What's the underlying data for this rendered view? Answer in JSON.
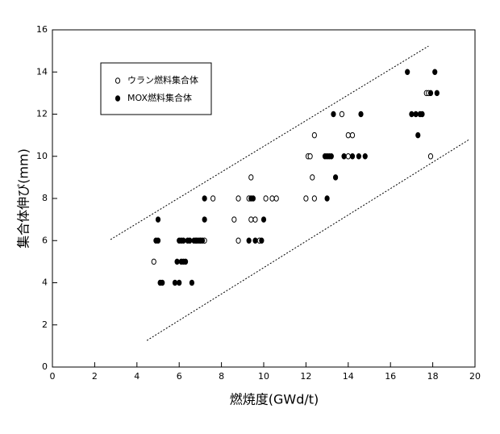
{
  "chart_data": {
    "type": "scatter",
    "x_label": "燃焼度(GWd/t)",
    "y_label": "集合体伸び(mm)",
    "xlim": [
      0,
      20
    ],
    "xticks": [
      0,
      2,
      4,
      6,
      8,
      10,
      12,
      14,
      16,
      18,
      20
    ],
    "ylim": [
      0,
      16
    ],
    "yticks": [
      0,
      2,
      4,
      6,
      8,
      10,
      12,
      14,
      16
    ],
    "legend": "upper left",
    "series": [
      {
        "name": "ウラン燃料集合体",
        "color": "#000000",
        "marker": "open",
        "x": [
          4.8,
          6.8,
          7.0,
          7.2,
          8.8,
          9.8,
          8.6,
          9.4,
          9.6,
          7.6,
          8.8,
          9.3,
          10.1,
          10.4,
          10.6,
          12.0,
          12.4,
          9.4,
          12.3,
          12.1,
          12.2,
          14.0,
          12.4,
          14.0,
          14.2,
          13.7,
          17.7,
          17.8,
          17.9
        ],
        "y": [
          5,
          6,
          6,
          6,
          6,
          6,
          7,
          7,
          7,
          8,
          8,
          8,
          8,
          8,
          8,
          8,
          8,
          9,
          9,
          10,
          10,
          10,
          11,
          11,
          11,
          12,
          13,
          13,
          10
        ]
      },
      {
        "name": "MOX燃料集合体",
        "color": "#000000",
        "marker": "filled",
        "x": [
          5.1,
          5.2,
          5.8,
          6.0,
          6.6,
          5.9,
          6.1,
          6.2,
          6.3,
          4.9,
          5.0,
          6.0,
          6.1,
          6.2,
          6.4,
          6.5,
          6.7,
          6.8,
          6.9,
          7.0,
          7.1,
          9.3,
          9.6,
          9.9,
          5.0,
          7.2,
          10.0,
          7.2,
          9.4,
          9.5,
          13.0,
          13.4,
          12.9,
          13.0,
          13.1,
          13.2,
          13.8,
          14.2,
          14.5,
          14.8,
          17.3,
          13.3,
          14.6,
          17.0,
          17.2,
          17.4,
          17.5,
          17.9,
          18.2,
          16.8,
          18.1
        ],
        "y": [
          4,
          4,
          4,
          4,
          4,
          5,
          5,
          5,
          5,
          6,
          6,
          6,
          6,
          6,
          6,
          6,
          6,
          6,
          6,
          6,
          6,
          6,
          6,
          6,
          7,
          7,
          7,
          8,
          8,
          8,
          8,
          9,
          10,
          10,
          10,
          10,
          10,
          10,
          10,
          10,
          11,
          12,
          12,
          12,
          12,
          12,
          12,
          13,
          13,
          14,
          14
        ]
      }
    ],
    "bounds": [
      {
        "x": [
          2.75,
          17.8
        ],
        "y": [
          6.05,
          15.23
        ]
      },
      {
        "x": [
          4.47,
          19.73
        ],
        "y": [
          1.26,
          10.8
        ]
      }
    ]
  }
}
